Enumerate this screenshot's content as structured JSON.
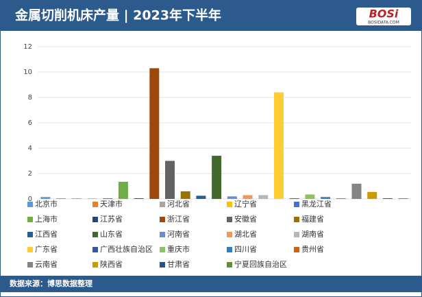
{
  "chart_data": {
    "type": "bar",
    "title": "金属切削机床产量 | 2023年下半年",
    "logo": "BOSi",
    "logo_sub": "BOSIDATA.COM",
    "source": "数据来源：博思数据整理",
    "categories": [
      "北京市",
      "天津市",
      "河北省",
      "辽宁省",
      "黑龙江省",
      "上海市",
      "江苏省",
      "浙江省",
      "安徽省",
      "福建省",
      "江西省",
      "山东省",
      "河南省",
      "湖北省",
      "湖南省",
      "广东省",
      "广西壮族自治区",
      "重庆市",
      "四川省",
      "贵州省",
      "云南省",
      "陕西省",
      "甘肃省",
      "宁夏回族自治区"
    ],
    "values": [
      0.15,
      0.05,
      0.05,
      0.05,
      0.05,
      1.35,
      0.05,
      10.3,
      3.0,
      0.6,
      0.25,
      3.4,
      0.2,
      0.3,
      0.3,
      8.4,
      0.05,
      0.35,
      0.15,
      0.05,
      1.2,
      0.55,
      0.05,
      0.05
    ],
    "colors": [
      "#5b9bd5",
      "#ed7d31",
      "#a5a5a5",
      "#ffc000",
      "#4472c4",
      "#70ad47",
      "#264478",
      "#9e480e",
      "#636363",
      "#997300",
      "#255e91",
      "#43682b",
      "#698ed0",
      "#f1975a",
      "#b7b7b7",
      "#ffcd33",
      "#335aa1",
      "#8cc168",
      "#327dc2",
      "#d26012",
      "#848484",
      "#cc9a00",
      "#2e4f8f",
      "#5f9138"
    ],
    "ylim": [
      0,
      12
    ],
    "yticks": [
      0,
      2,
      4,
      6,
      8,
      10,
      12
    ],
    "grid": true
  }
}
